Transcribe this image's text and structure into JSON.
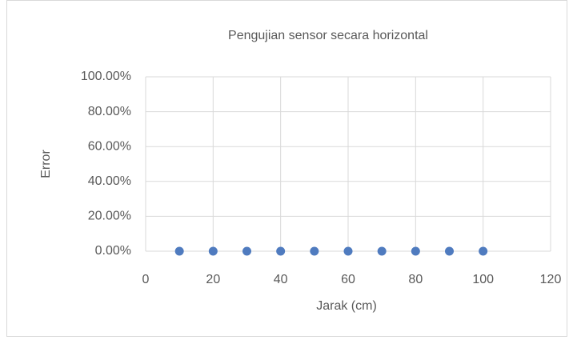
{
  "chart_data": {
    "type": "scatter",
    "title": "Pengujian sensor secara horizontal",
    "x_label": "Jarak (cm)",
    "y_label": "Error",
    "series": [
      {
        "name": "Error",
        "color": "#4f7bbf",
        "x": [
          10,
          20,
          30,
          40,
          50,
          60,
          70,
          80,
          90,
          100
        ],
        "values": [
          0,
          0,
          0,
          0,
          0,
          0,
          0,
          0,
          0,
          0
        ]
      }
    ],
    "xlim": [
      0,
      120
    ],
    "xticks": [
      0,
      20,
      40,
      60,
      80,
      100,
      120
    ],
    "ylim": [
      0,
      100
    ],
    "yticks": [
      {
        "value": 0,
        "label": "0.00%"
      },
      {
        "value": 20,
        "label": "20.00%"
      },
      {
        "value": 40,
        "label": "40.00%"
      },
      {
        "value": 60,
        "label": "60.00%"
      },
      {
        "value": 80,
        "label": "80.00%"
      },
      {
        "value": 100,
        "label": "100.00%"
      }
    ],
    "grid": true
  }
}
